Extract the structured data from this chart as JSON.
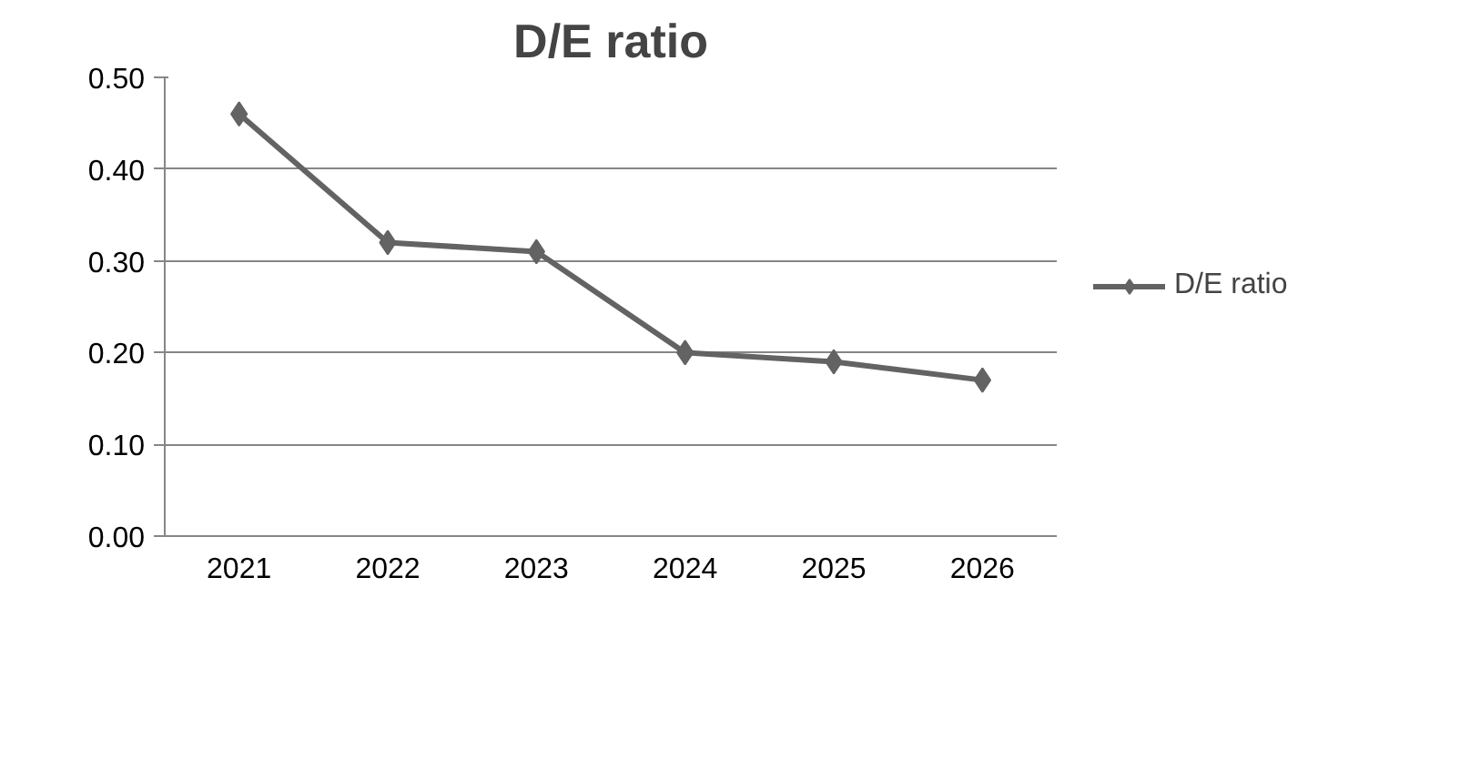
{
  "chart_data": {
    "type": "line",
    "title": "D/E ratio",
    "categories": [
      "2021",
      "2022",
      "2023",
      "2024",
      "2025",
      "2026"
    ],
    "series": [
      {
        "name": "D/E ratio",
        "color": "#636363",
        "values": [
          0.46,
          0.32,
          0.31,
          0.2,
          0.19,
          0.17
        ]
      }
    ],
    "ylim": [
      0,
      0.5
    ],
    "yticks": [
      {
        "value": 0,
        "label": "0.00"
      },
      {
        "value": 0.1,
        "label": "0.10"
      },
      {
        "value": 0.2,
        "label": "0.20"
      },
      {
        "value": 0.3,
        "label": "0.30"
      },
      {
        "value": 0.4,
        "label": "0.40"
      },
      {
        "value": 0.5,
        "label": "0.50"
      }
    ],
    "grid": "y",
    "legend": "right",
    "marker": "diamond",
    "line_style": "solid"
  }
}
